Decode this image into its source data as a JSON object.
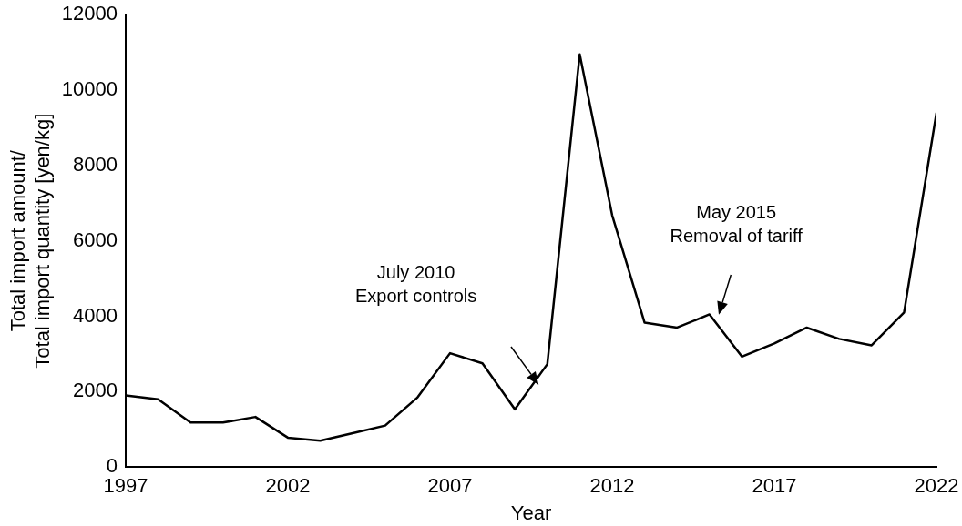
{
  "chart_data": {
    "type": "line",
    "xlabel": "Year",
    "ylabel": "Total import amount/\nTotal import quantity [yen/kg]",
    "x": [
      1997,
      1998,
      1999,
      2000,
      2001,
      2002,
      2003,
      2004,
      2005,
      2006,
      2007,
      2008,
      2009,
      2010,
      2011,
      2012,
      2013,
      2014,
      2015,
      2016,
      2017,
      2018,
      2019,
      2020,
      2021,
      2022
    ],
    "series": [
      {
        "color": "#000000",
        "values": [
          1900,
          1800,
          1180,
          1180,
          1330,
          780,
          700,
          900,
          1100,
          1850,
          3020,
          2750,
          1530,
          2730,
          10950,
          6680,
          3830,
          3700,
          4050,
          2930,
          3280,
          3700,
          3400,
          3230,
          4100,
          9400
        ]
      }
    ],
    "xlim": [
      1997,
      2022
    ],
    "xticks": [
      1997,
      2002,
      2007,
      2012,
      2017,
      2022
    ],
    "ylim": [
      0,
      12000
    ],
    "yticks": [
      0,
      2000,
      4000,
      6000,
      8000,
      10000,
      12000
    ],
    "grid": false,
    "legend": false,
    "marker": "none",
    "line_style": "solid",
    "annotations": [
      "July 2010\nExport controls",
      "May 2015\nRemoval of tariff"
    ]
  }
}
